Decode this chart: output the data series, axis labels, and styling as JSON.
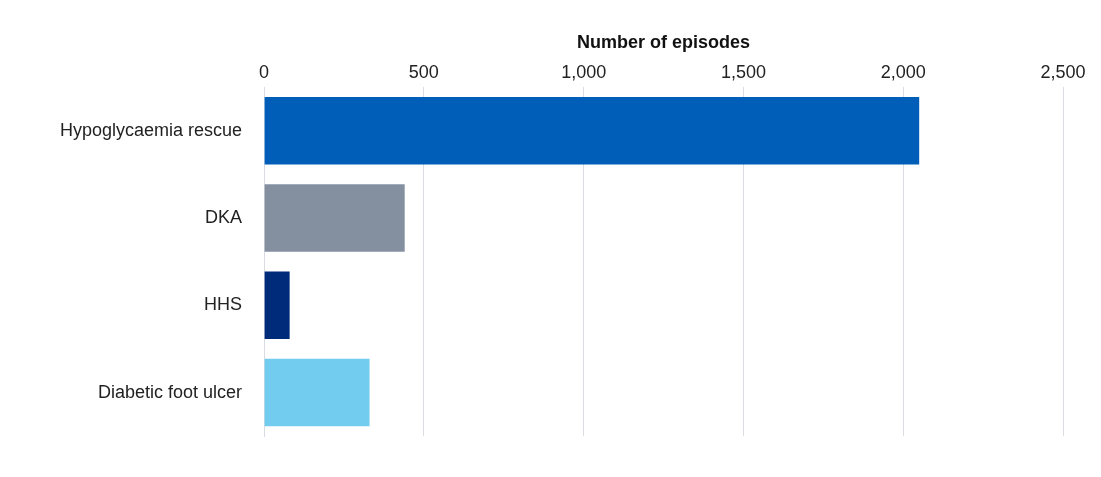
{
  "chart_data": {
    "type": "bar",
    "orientation": "horizontal",
    "xlabel": "Number of episodes",
    "categories": [
      "Hypoglycaemia rescue",
      "DKA",
      "HHS",
      "Diabetic foot ulcer"
    ],
    "values": [
      2050,
      440,
      80,
      330
    ],
    "colors": [
      "#005eb8",
      "#8490a0",
      "#002a7a",
      "#71ccef"
    ],
    "xlim": [
      0,
      2500
    ],
    "xticks": [
      0,
      500,
      {
        "value": 1000,
        "label": "1,000"
      },
      {
        "value": 1500,
        "label": "1,500"
      },
      {
        "value": 2000,
        "label": "2,000"
      },
      {
        "value": 2500,
        "label": "2,500"
      }
    ],
    "grid": "x"
  }
}
